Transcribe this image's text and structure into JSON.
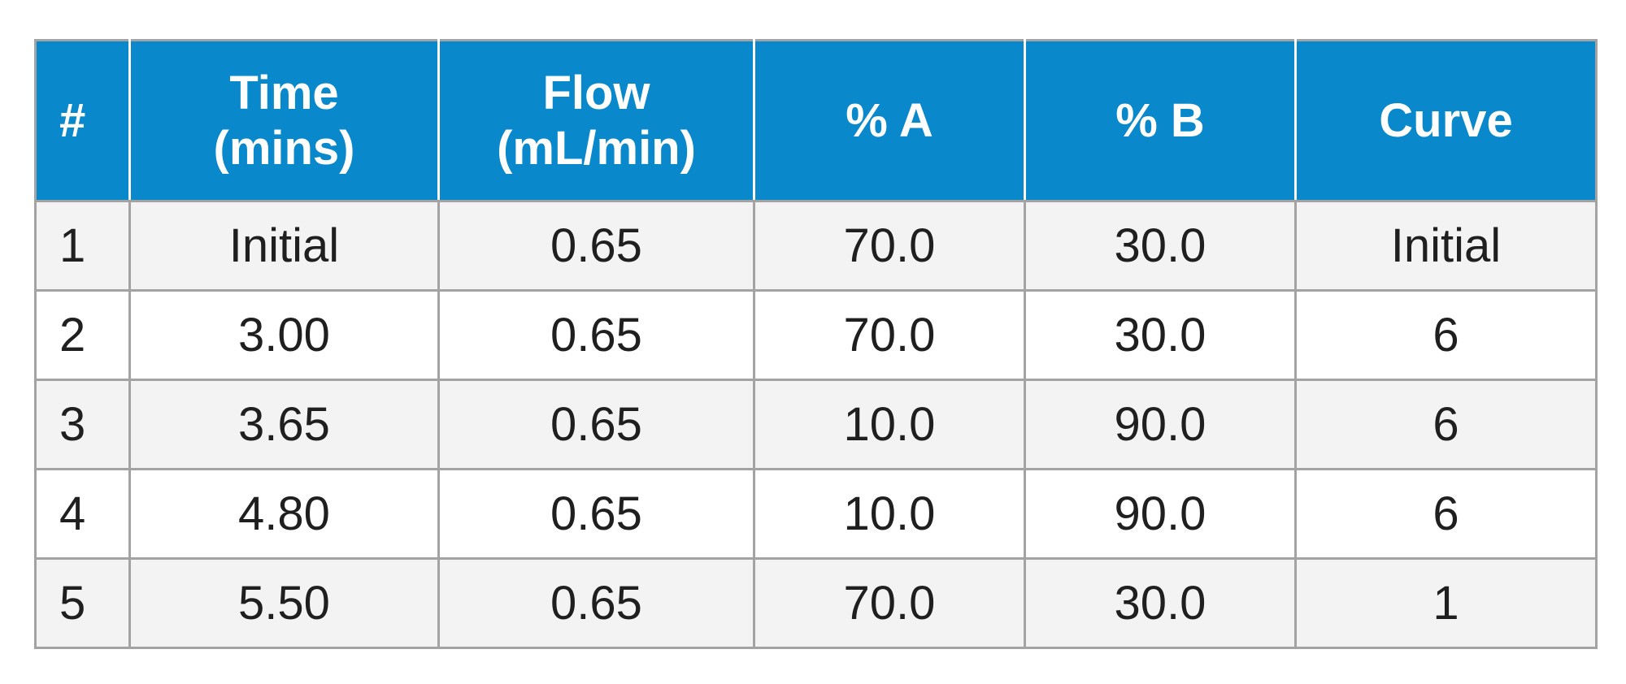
{
  "table": {
    "headers": [
      {
        "line1": "#",
        "line2": ""
      },
      {
        "line1": "Time",
        "line2": "(mins)"
      },
      {
        "line1": "Flow",
        "line2": "(mL/min)"
      },
      {
        "line1": "% A",
        "line2": ""
      },
      {
        "line1": "% B",
        "line2": ""
      },
      {
        "line1": "Curve",
        "line2": ""
      }
    ],
    "rows": [
      [
        "1",
        "Initial",
        "0.65",
        "70.0",
        "30.0",
        "Initial"
      ],
      [
        "2",
        "3.00",
        "0.65",
        "70.0",
        "30.0",
        "6"
      ],
      [
        "3",
        "3.65",
        "0.65",
        "10.0",
        "90.0",
        "6"
      ],
      [
        "4",
        "4.80",
        "0.65",
        "10.0",
        "90.0",
        "6"
      ],
      [
        "5",
        "5.50",
        "0.65",
        "70.0",
        "30.0",
        "1"
      ]
    ]
  },
  "colors": {
    "header_background": "#0a88cc",
    "header_text": "#ffffff",
    "odd_row_background": "#f3f3f4",
    "even_row_background": "#ffffff",
    "border": "#a3a3a3"
  }
}
